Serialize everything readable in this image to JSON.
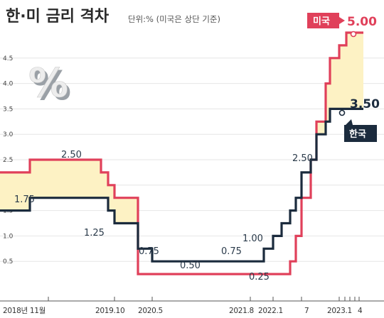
{
  "chart_data": {
    "type": "line",
    "title": "한·미 금리 격차",
    "unit_note": "단위:% (미국은 상단 기준)",
    "ylim": [
      0,
      5.25
    ],
    "y_ticks": [
      "0.5",
      "1.0",
      "1.5",
      "2.0",
      "2.5",
      "3.0",
      "3.5",
      "4.0",
      "4.5"
    ],
    "x_ticks": [
      "2018년 11월",
      "2019.10",
      "2020.5",
      "2021.8",
      "2022.1",
      "7",
      "2023.1",
      "4"
    ],
    "colors": {
      "us": "#e0405a",
      "kr": "#1b2b3d",
      "gap_fill": "#fdf2c4",
      "badge_us": "#e0405a",
      "badge_kr": "#1b2b3d"
    },
    "series": [
      {
        "name": "미국",
        "x": [
          0,
          1,
          2,
          3,
          4,
          5,
          6,
          7,
          8,
          9,
          10,
          11,
          12,
          13,
          14,
          15,
          16,
          17,
          18,
          19,
          20,
          21,
          22,
          23,
          24,
          25,
          26,
          27,
          28,
          29,
          30
        ],
        "values": [
          2.25,
          2.25,
          2.5,
          2.5,
          2.5,
          2.5,
          2.25,
          2.0,
          1.75,
          1.75,
          0.25,
          0.25,
          0.25,
          0.25,
          0.25,
          0.25,
          0.25,
          0.25,
          0.25,
          0.25,
          0.25,
          0.5,
          1.0,
          1.75,
          2.5,
          3.25,
          4.0,
          4.5,
          4.75,
          5.0,
          5.0
        ]
      },
      {
        "name": "한국",
        "x": [
          0,
          1,
          2,
          3,
          4,
          5,
          6,
          7,
          8,
          9,
          10,
          11,
          12,
          13,
          14,
          15,
          16,
          17,
          18,
          19,
          20,
          21,
          22,
          23,
          24,
          25,
          26,
          27,
          28,
          29,
          30
        ],
        "values": [
          1.5,
          1.5,
          1.75,
          1.75,
          1.75,
          1.75,
          1.75,
          1.5,
          1.25,
          1.25,
          0.75,
          0.5,
          0.5,
          0.5,
          0.5,
          0.5,
          0.5,
          0.5,
          0.75,
          1.0,
          1.25,
          1.5,
          1.75,
          2.25,
          2.5,
          3.0,
          3.25,
          3.5,
          3.5,
          3.5,
          3.5
        ]
      }
    ],
    "annotations": [
      "2.50",
      "1.75",
      "1.25",
      "0.75",
      "0.50",
      "0.75",
      "1.00",
      "0.25",
      "2.50"
    ],
    "end_labels": {
      "us": "5.00",
      "kr": "3.50"
    },
    "badges": {
      "us": "미국",
      "kr": "한국"
    },
    "decor_symbol": "%"
  }
}
